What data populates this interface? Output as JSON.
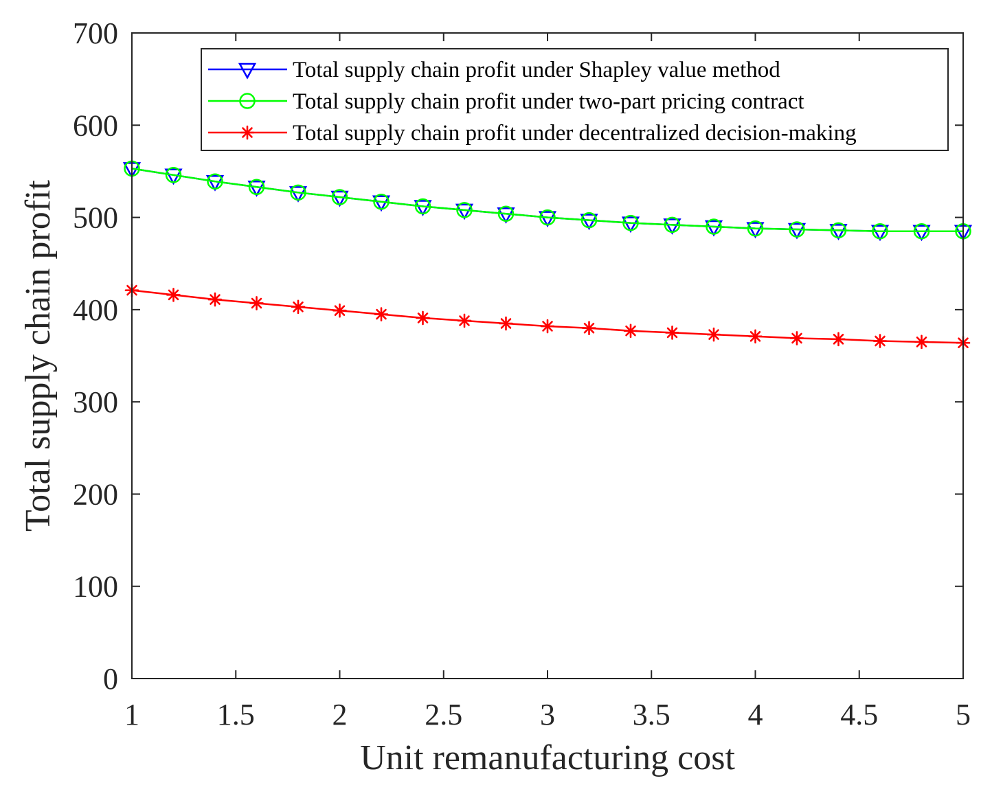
{
  "chart_data": {
    "type": "line",
    "title": "",
    "xlabel": "Unit remanufacturing cost",
    "ylabel": "Total supply chain profit",
    "xlim": [
      1,
      5
    ],
    "ylim": [
      0,
      700
    ],
    "xticks": [
      1,
      1.5,
      2,
      2.5,
      3,
      3.5,
      4,
      4.5,
      5
    ],
    "xtick_labels": [
      "1",
      "1.5",
      "2",
      "2.5",
      "3",
      "3.5",
      "4",
      "4.5",
      "5"
    ],
    "yticks": [
      0,
      100,
      200,
      300,
      400,
      500,
      600,
      700
    ],
    "ytick_labels": [
      "0",
      "100",
      "200",
      "300",
      "400",
      "500",
      "600",
      "700"
    ],
    "grid": false,
    "legend_position": "top-right",
    "x": [
      1,
      1.2,
      1.4,
      1.6,
      1.8,
      2,
      2.2,
      2.4,
      2.6,
      2.8,
      3,
      3.2,
      3.4,
      3.6,
      3.8,
      4,
      4.2,
      4.4,
      4.6,
      4.8,
      5
    ],
    "series": [
      {
        "name": "Total supply chain profit under Shapley value method",
        "color": "#0000ff",
        "marker": "triangle-down",
        "values": [
          553,
          546,
          539,
          533,
          527,
          522,
          517,
          512,
          508,
          504,
          500,
          497,
          494,
          492,
          490,
          488,
          487,
          486,
          485,
          485,
          485
        ]
      },
      {
        "name": "Total supply chain profit under two-part pricing contract",
        "color": "#00ff00",
        "marker": "circle",
        "values": [
          553,
          546,
          539,
          533,
          527,
          522,
          517,
          512,
          508,
          504,
          500,
          497,
          494,
          492,
          490,
          488,
          487,
          486,
          485,
          485,
          485
        ]
      },
      {
        "name": "Total supply chain profit under decentralized decision-making",
        "color": "#ff0000",
        "marker": "asterisk",
        "values": [
          421,
          416,
          411,
          407,
          403,
          399,
          395,
          391,
          388,
          385,
          382,
          380,
          377,
          375,
          373,
          371,
          369,
          368,
          366,
          365,
          364
        ]
      }
    ]
  }
}
